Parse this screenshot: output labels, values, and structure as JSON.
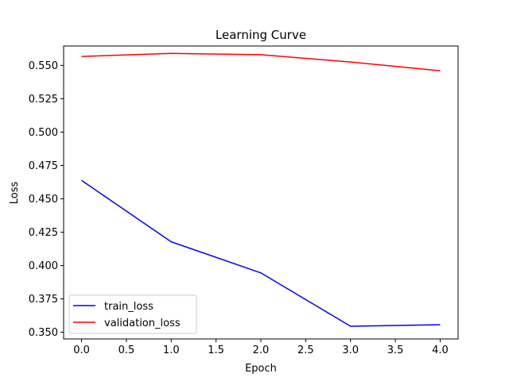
{
  "chart_data": {
    "type": "line",
    "title": "Learning Curve",
    "xlabel": "Epoch",
    "ylabel": "Loss",
    "x": [
      0,
      1,
      2,
      3,
      4
    ],
    "xlim": [
      -0.2,
      4.2
    ],
    "ylim": [
      0.345,
      0.5645
    ],
    "xticks": [
      0.0,
      0.5,
      1.0,
      1.5,
      2.0,
      2.5,
      3.0,
      3.5,
      4.0
    ],
    "xtick_labels": [
      "0.0",
      "0.5",
      "1.0",
      "1.5",
      "2.0",
      "2.5",
      "3.0",
      "3.5",
      "4.0"
    ],
    "yticks": [
      0.35,
      0.375,
      0.4,
      0.425,
      0.45,
      0.475,
      0.5,
      0.525,
      0.55
    ],
    "ytick_labels": [
      "0.350",
      "0.375",
      "0.400",
      "0.425",
      "0.450",
      "0.475",
      "0.500",
      "0.525",
      "0.550"
    ],
    "grid": false,
    "legend_position": "lower-left",
    "series": [
      {
        "name": "train_loss",
        "color": "#0000ff",
        "values": [
          0.4638,
          0.4178,
          0.3945,
          0.3545,
          0.3556
        ]
      },
      {
        "name": "validation_loss",
        "color": "#ff0000",
        "values": [
          0.5567,
          0.559,
          0.558,
          0.5525,
          0.546
        ]
      }
    ]
  }
}
